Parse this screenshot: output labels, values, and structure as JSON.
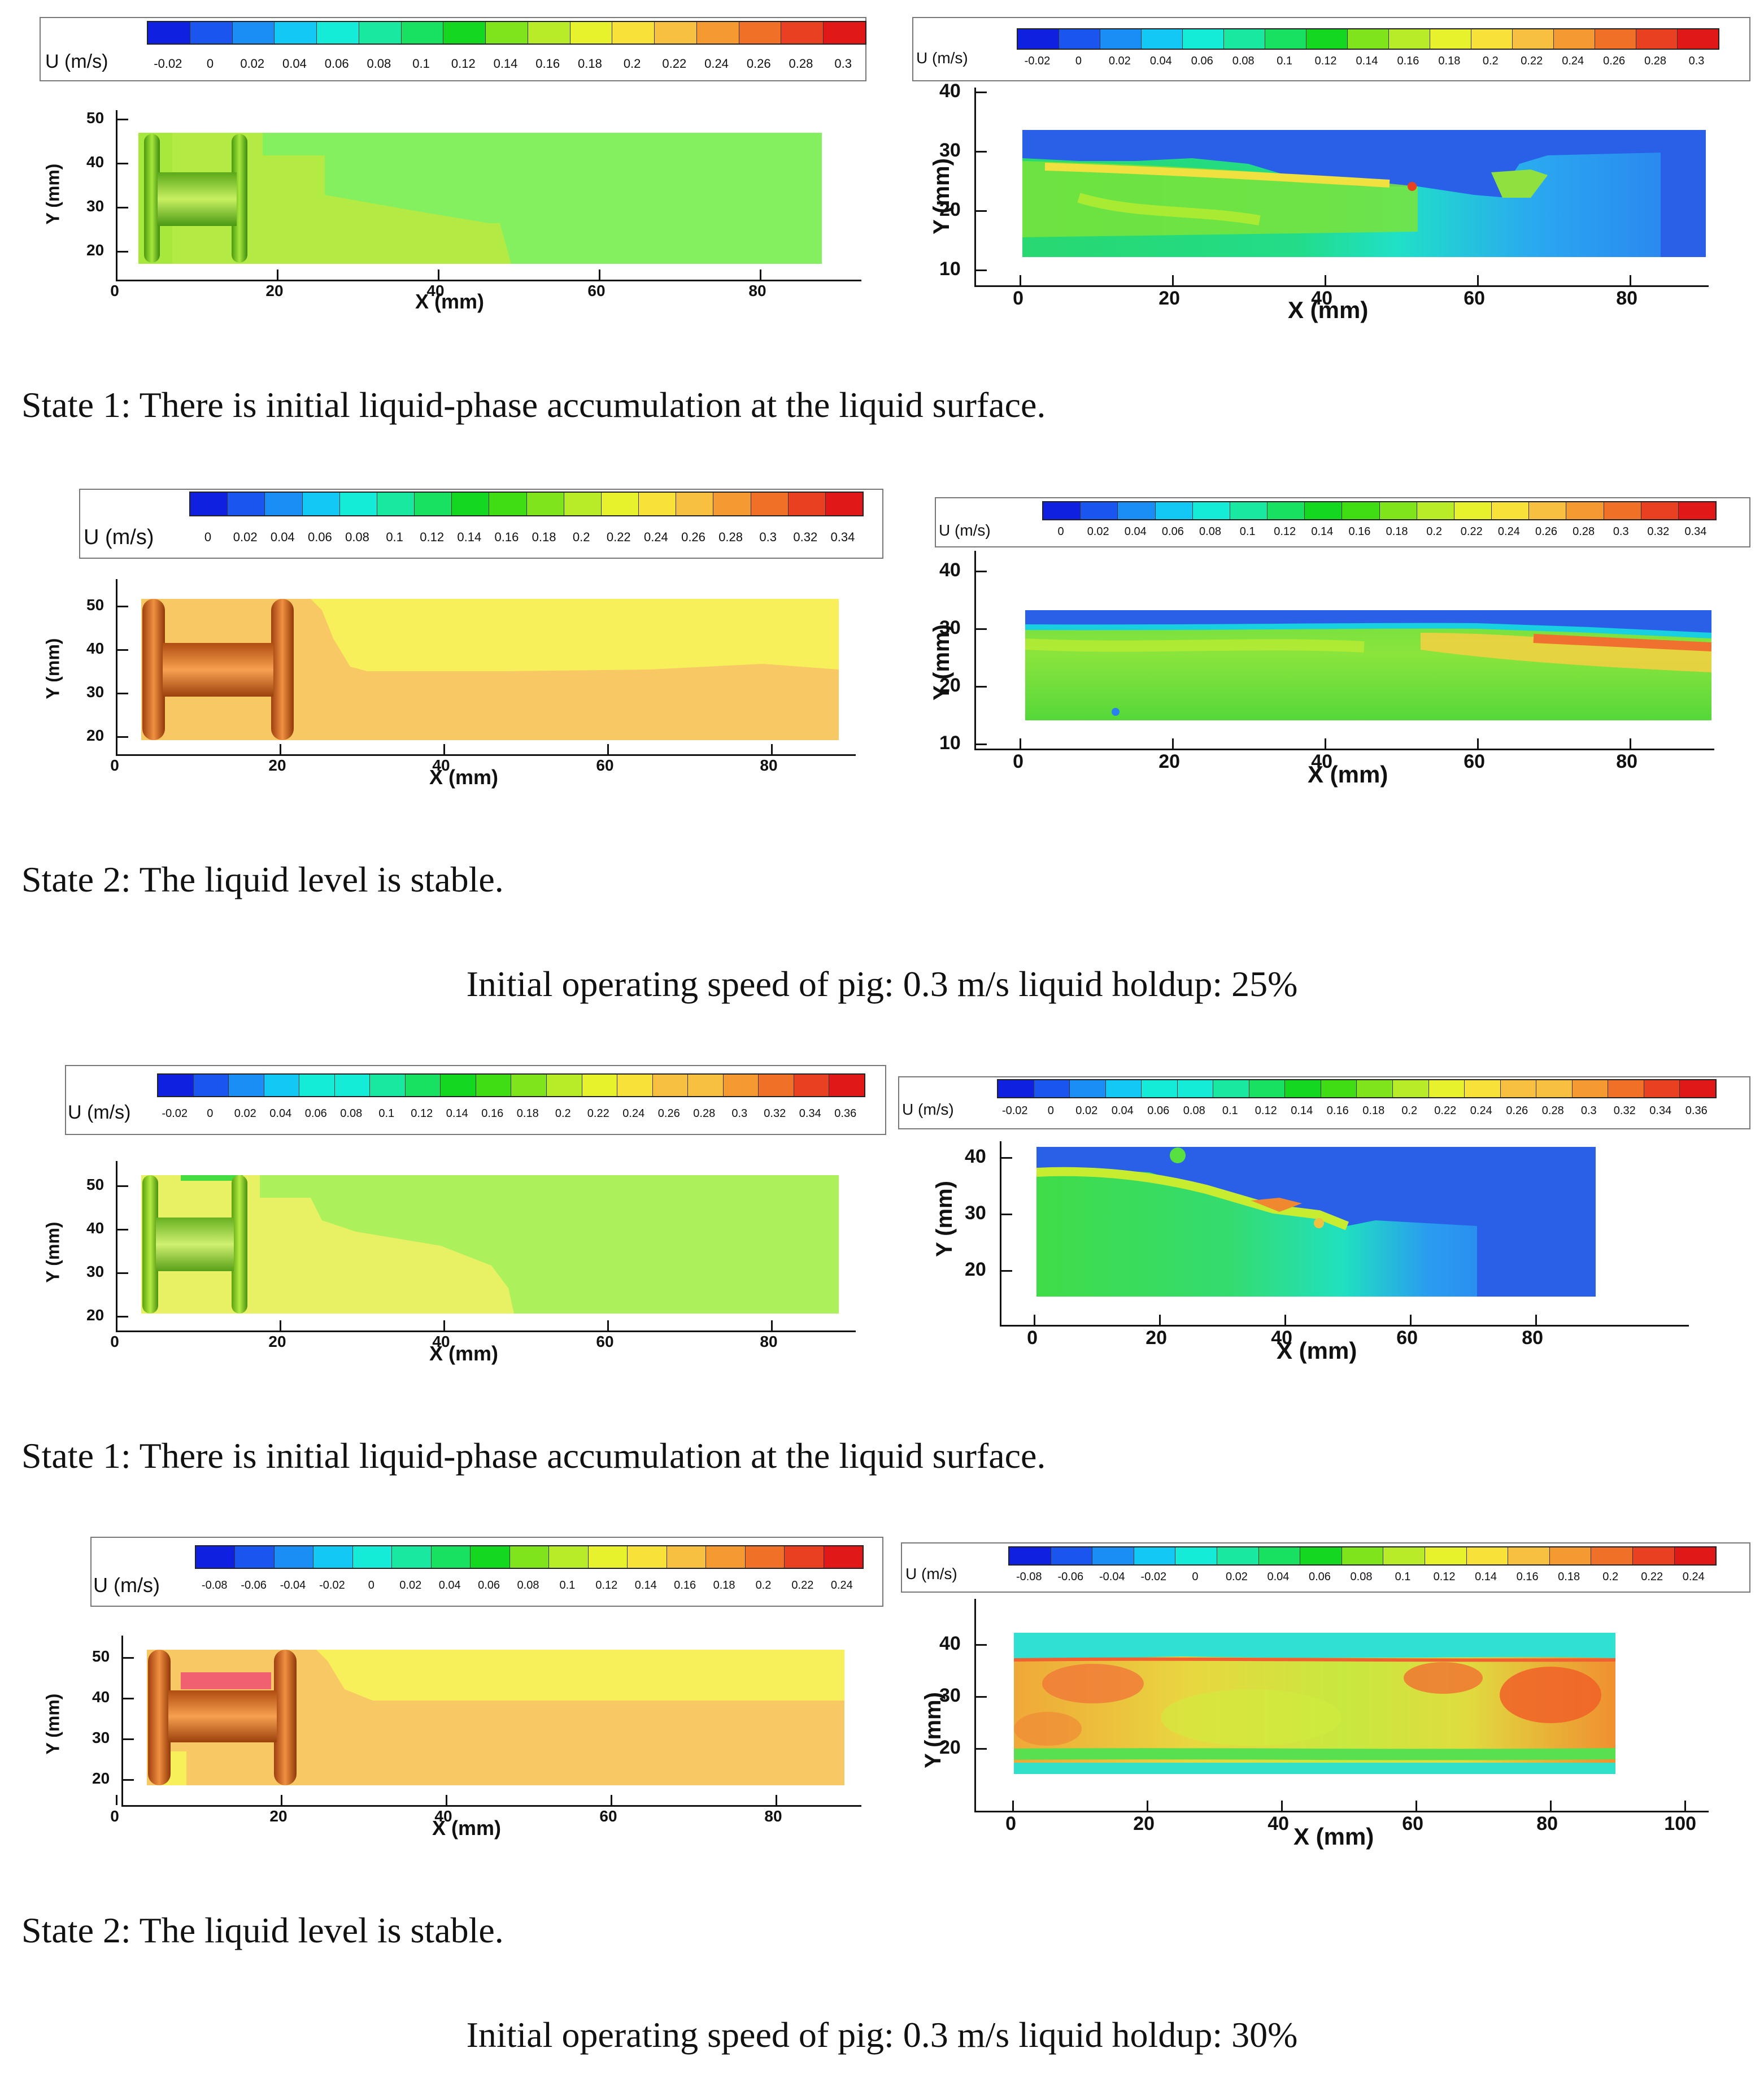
{
  "figure": {
    "unit_label": "U (m/s)",
    "x_label": "X (mm)",
    "y_label": "Y (mm)",
    "groups": [
      {
        "rows": [
          {
            "caption": "State 1: There is initial liquid-phase accumulation at the liquid surface.",
            "left": {
              "legend_ticks": [
                "-0.02",
                "0",
                "0.02",
                "0.04",
                "0.06",
                "0.08",
                "0.1",
                "0.12",
                "0.14",
                "0.16",
                "0.18",
                "0.2",
                "0.22",
                "0.24",
                "0.26",
                "0.28",
                "0.3"
              ],
              "x_ticks": [
                "0",
                "20",
                "40",
                "60",
                "80"
              ],
              "y_ticks": [
                "50",
                "40",
                "30",
                "20"
              ]
            },
            "right": {
              "legend_ticks": [
                "-0.02",
                "0",
                "0.02",
                "0.04",
                "0.06",
                "0.08",
                "0.1",
                "0.12",
                "0.14",
                "0.16",
                "0.18",
                "0.2",
                "0.22",
                "0.24",
                "0.26",
                "0.28",
                "0.3"
              ],
              "x_ticks": [
                "0",
                "20",
                "40",
                "60",
                "80"
              ],
              "y_ticks": [
                "40",
                "30",
                "20",
                "10"
              ]
            }
          },
          {
            "caption": "State 2: The liquid level is stable.",
            "left": {
              "legend_ticks": [
                "0",
                "0.02",
                "0.04",
                "0.06",
                "0.08",
                "0.1",
                "0.12",
                "0.14",
                "0.16",
                "0.18",
                "0.2",
                "0.22",
                "0.24",
                "0.26",
                "0.28",
                "0.3",
                "0.32",
                "0.34"
              ],
              "x_ticks": [
                "0",
                "20",
                "40",
                "60",
                "80"
              ],
              "y_ticks": [
                "50",
                "40",
                "30",
                "20"
              ]
            },
            "right": {
              "legend_ticks": [
                "0",
                "0.02",
                "0.04",
                "0.06",
                "0.08",
                "0.1",
                "0.12",
                "0.14",
                "0.16",
                "0.18",
                "0.2",
                "0.22",
                "0.24",
                "0.26",
                "0.28",
                "0.3",
                "0.32",
                "0.34"
              ],
              "x_ticks": [
                "0",
                "20",
                "40",
                "60",
                "80"
              ],
              "y_ticks": [
                "40",
                "30",
                "20",
                "10"
              ]
            }
          }
        ],
        "title": "Initial operating speed of pig: 0.3 m/s liquid holdup: 25%"
      },
      {
        "rows": [
          {
            "caption": "State 1: There is initial liquid-phase accumulation at the liquid surface.",
            "left": {
              "legend_ticks": [
                "-0.02",
                "0",
                "0.02",
                "0.04",
                "0.06",
                "0.08",
                "0.1",
                "0.12",
                "0.14",
                "0.16",
                "0.18",
                "0.2",
                "0.22",
                "0.24",
                "0.26",
                "0.28",
                "0.3",
                "0.32",
                "0.34",
                "0.36"
              ],
              "x_ticks": [
                "0",
                "20",
                "40",
                "60",
                "80"
              ],
              "y_ticks": [
                "50",
                "40",
                "30",
                "20"
              ]
            },
            "right": {
              "legend_ticks": [
                "-0.02",
                "0",
                "0.02",
                "0.04",
                "0.06",
                "0.08",
                "0.1",
                "0.12",
                "0.14",
                "0.16",
                "0.18",
                "0.2",
                "0.22",
                "0.24",
                "0.26",
                "0.28",
                "0.3",
                "0.32",
                "0.34",
                "0.36"
              ],
              "x_ticks": [
                "0",
                "20",
                "40",
                "60",
                "80"
              ],
              "y_ticks": [
                "40",
                "30",
                "20"
              ]
            }
          },
          {
            "caption": "State 2: The liquid level is stable.",
            "left": {
              "legend_ticks": [
                "-0.08",
                "-0.06",
                "-0.04",
                "-0.02",
                "0",
                "0.02",
                "0.04",
                "0.06",
                "0.08",
                "0.1",
                "0.12",
                "0.14",
                "0.16",
                "0.18",
                "0.2",
                "0.22",
                "0.24"
              ],
              "x_ticks": [
                "0",
                "20",
                "40",
                "60",
                "80"
              ],
              "y_ticks": [
                "50",
                "40",
                "30",
                "20"
              ]
            },
            "right": {
              "legend_ticks": [
                "-0.08",
                "-0.06",
                "-0.04",
                "-0.02",
                "0",
                "0.02",
                "0.04",
                "0.06",
                "0.08",
                "0.1",
                "0.12",
                "0.14",
                "0.16",
                "0.18",
                "0.2",
                "0.22",
                "0.24"
              ],
              "x_ticks": [
                "0",
                "20",
                "40",
                "60",
                "80",
                "100"
              ],
              "y_ticks": [
                "40",
                "30",
                "20"
              ]
            }
          }
        ],
        "title": "Initial operating speed of pig: 0.3 m/s liquid holdup: 30%"
      }
    ],
    "colormap": [
      "#1020e0",
      "#1a55f0",
      "#1a8ef5",
      "#12c8f5",
      "#14ecd8",
      "#18e8a0",
      "#18e060",
      "#14d820",
      "#40dc14",
      "#80e41c",
      "#b8ec28",
      "#e8f22c",
      "#f8e23a",
      "#f8c040",
      "#f59a30",
      "#f07028",
      "#e84020",
      "#e01818"
    ]
  }
}
